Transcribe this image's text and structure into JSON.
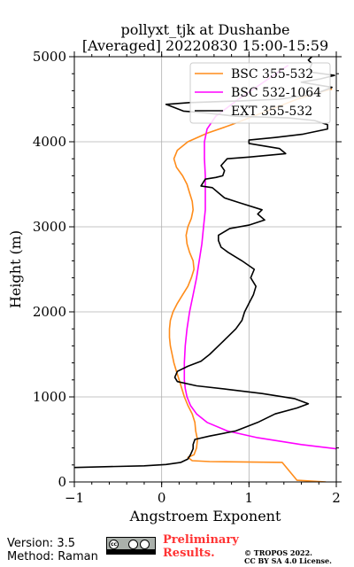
{
  "chart_data": {
    "type": "line",
    "title": "pollyxt_tjk at Dushanbe",
    "subtitle": "[Averaged] 20220830 15:00-15:59",
    "xlabel": "Angstroem Exponent",
    "ylabel": "Height (m)",
    "xlim": [
      -1,
      2
    ],
    "ylim": [
      0,
      5000
    ],
    "xticks": [
      "−1",
      "0",
      "1",
      "2"
    ],
    "yticks": [
      "0",
      "1000",
      "2000",
      "3000",
      "4000",
      "5000"
    ],
    "grid": true,
    "legend_position": "top-right",
    "series": [
      {
        "name": "BSC 355-532",
        "color": "#ff8c1a",
        "points": [
          [
            1.88,
            0
          ],
          [
            1.55,
            20
          ],
          [
            1.38,
            230
          ],
          [
            0.55,
            240
          ],
          [
            0.35,
            250
          ],
          [
            0.3,
            290
          ],
          [
            0.37,
            320
          ],
          [
            0.4,
            400
          ],
          [
            0.41,
            500
          ],
          [
            0.39,
            600
          ],
          [
            0.38,
            700
          ],
          [
            0.35,
            800
          ],
          [
            0.3,
            900
          ],
          [
            0.26,
            1000
          ],
          [
            0.23,
            1100
          ],
          [
            0.2,
            1200
          ],
          [
            0.17,
            1300
          ],
          [
            0.14,
            1400
          ],
          [
            0.12,
            1500
          ],
          [
            0.1,
            1600
          ],
          [
            0.09,
            1700
          ],
          [
            0.09,
            1800
          ],
          [
            0.1,
            1900
          ],
          [
            0.13,
            2000
          ],
          [
            0.18,
            2100
          ],
          [
            0.24,
            2200
          ],
          [
            0.3,
            2300
          ],
          [
            0.34,
            2400
          ],
          [
            0.37,
            2500
          ],
          [
            0.36,
            2600
          ],
          [
            0.32,
            2700
          ],
          [
            0.29,
            2800
          ],
          [
            0.28,
            2900
          ],
          [
            0.3,
            3000
          ],
          [
            0.34,
            3100
          ],
          [
            0.36,
            3200
          ],
          [
            0.35,
            3300
          ],
          [
            0.32,
            3400
          ],
          [
            0.29,
            3500
          ],
          [
            0.24,
            3600
          ],
          [
            0.17,
            3700
          ],
          [
            0.14,
            3800
          ],
          [
            0.18,
            3900
          ],
          [
            0.3,
            4000
          ],
          [
            0.52,
            4100
          ],
          [
            0.8,
            4200
          ],
          [
            1.05,
            4300
          ],
          [
            1.3,
            4400
          ],
          [
            1.55,
            4500
          ],
          [
            1.8,
            4580
          ],
          [
            1.95,
            4620
          ]
        ]
      },
      {
        "name": "BSC 532-1064",
        "color": "#ff00ff",
        "points": [
          [
            2.0,
            390
          ],
          [
            1.6,
            440
          ],
          [
            1.1,
            520
          ],
          [
            0.75,
            600
          ],
          [
            0.52,
            700
          ],
          [
            0.4,
            800
          ],
          [
            0.33,
            900
          ],
          [
            0.29,
            1000
          ],
          [
            0.27,
            1100
          ],
          [
            0.26,
            1200
          ],
          [
            0.26,
            1400
          ],
          [
            0.27,
            1600
          ],
          [
            0.29,
            1800
          ],
          [
            0.32,
            2000
          ],
          [
            0.36,
            2200
          ],
          [
            0.4,
            2400
          ],
          [
            0.43,
            2600
          ],
          [
            0.46,
            2800
          ],
          [
            0.48,
            3000
          ],
          [
            0.5,
            3200
          ],
          [
            0.5,
            3400
          ],
          [
            0.5,
            3600
          ],
          [
            0.49,
            3800
          ],
          [
            0.49,
            4000
          ],
          [
            0.52,
            4150
          ],
          [
            0.62,
            4300
          ],
          [
            0.88,
            4500
          ],
          [
            1.28,
            4780
          ],
          [
            1.45,
            4900
          ]
        ]
      },
      {
        "name": "EXT 355-532",
        "color": "#000000",
        "points": [
          [
            -1.0,
            170
          ],
          [
            -0.6,
            180
          ],
          [
            -0.2,
            190
          ],
          [
            0.05,
            205
          ],
          [
            0.22,
            230
          ],
          [
            0.3,
            270
          ],
          [
            0.33,
            320
          ],
          [
            0.36,
            390
          ],
          [
            0.36,
            440
          ],
          [
            0.38,
            500
          ],
          [
            0.55,
            540
          ],
          [
            0.85,
            600
          ],
          [
            1.1,
            700
          ],
          [
            1.3,
            800
          ],
          [
            1.55,
            870
          ],
          [
            1.68,
            920
          ],
          [
            1.52,
            980
          ],
          [
            1.15,
            1040
          ],
          [
            0.75,
            1090
          ],
          [
            0.4,
            1130
          ],
          [
            0.18,
            1180
          ],
          [
            0.15,
            1230
          ],
          [
            0.18,
            1300
          ],
          [
            0.3,
            1360
          ],
          [
            0.45,
            1420
          ],
          [
            0.55,
            1500
          ],
          [
            0.65,
            1600
          ],
          [
            0.75,
            1700
          ],
          [
            0.85,
            1800
          ],
          [
            0.92,
            1900
          ],
          [
            0.95,
            2000
          ],
          [
            1.0,
            2100
          ],
          [
            1.05,
            2200
          ],
          [
            1.08,
            2300
          ],
          [
            1.02,
            2400
          ],
          [
            1.06,
            2500
          ],
          [
            0.92,
            2600
          ],
          [
            0.76,
            2700
          ],
          [
            0.68,
            2760
          ],
          [
            0.65,
            2840
          ],
          [
            0.65,
            2900
          ],
          [
            0.78,
            2980
          ],
          [
            1.0,
            3020
          ],
          [
            1.18,
            3080
          ],
          [
            1.1,
            3150
          ],
          [
            1.15,
            3200
          ],
          [
            0.9,
            3280
          ],
          [
            0.72,
            3340
          ],
          [
            0.65,
            3400
          ],
          [
            0.58,
            3460
          ],
          [
            0.45,
            3480
          ],
          [
            0.5,
            3560
          ],
          [
            0.62,
            3580
          ],
          [
            0.7,
            3600
          ],
          [
            0.72,
            3660
          ],
          [
            0.68,
            3720
          ],
          [
            0.75,
            3800
          ],
          [
            1.0,
            3820
          ],
          [
            1.42,
            3860
          ],
          [
            1.35,
            3920
          ],
          [
            1.0,
            3980
          ],
          [
            1.0,
            4020
          ],
          [
            1.3,
            4050
          ],
          [
            1.62,
            4090
          ],
          [
            1.9,
            4150
          ],
          [
            1.9,
            4200
          ],
          [
            1.75,
            4250
          ],
          [
            1.45,
            4280
          ],
          [
            0.85,
            4300
          ],
          [
            0.5,
            4340
          ],
          [
            0.25,
            4360
          ],
          [
            0.05,
            4440
          ],
          [
            0.32,
            4460
          ],
          [
            0.9,
            4480
          ],
          [
            1.35,
            4500
          ],
          [
            1.75,
            4560
          ],
          [
            1.95,
            4640
          ],
          [
            1.6,
            4700
          ],
          [
            1.82,
            4740
          ],
          [
            1.98,
            4780
          ],
          [
            1.7,
            4820
          ],
          [
            1.7,
            4870
          ],
          [
            1.72,
            4920
          ],
          [
            1.68,
            4960
          ],
          [
            1.72,
            5000
          ]
        ]
      }
    ]
  },
  "footer": {
    "version": "Version: 3.5",
    "method": "Method: Raman",
    "license_badge_icon": "cc-by-sa-badge-icon",
    "preliminary": "Preliminary Results.",
    "copyright_line1": "© TROPOS 2022.",
    "copyright_line2": "CC BY SA 4.0 License."
  }
}
